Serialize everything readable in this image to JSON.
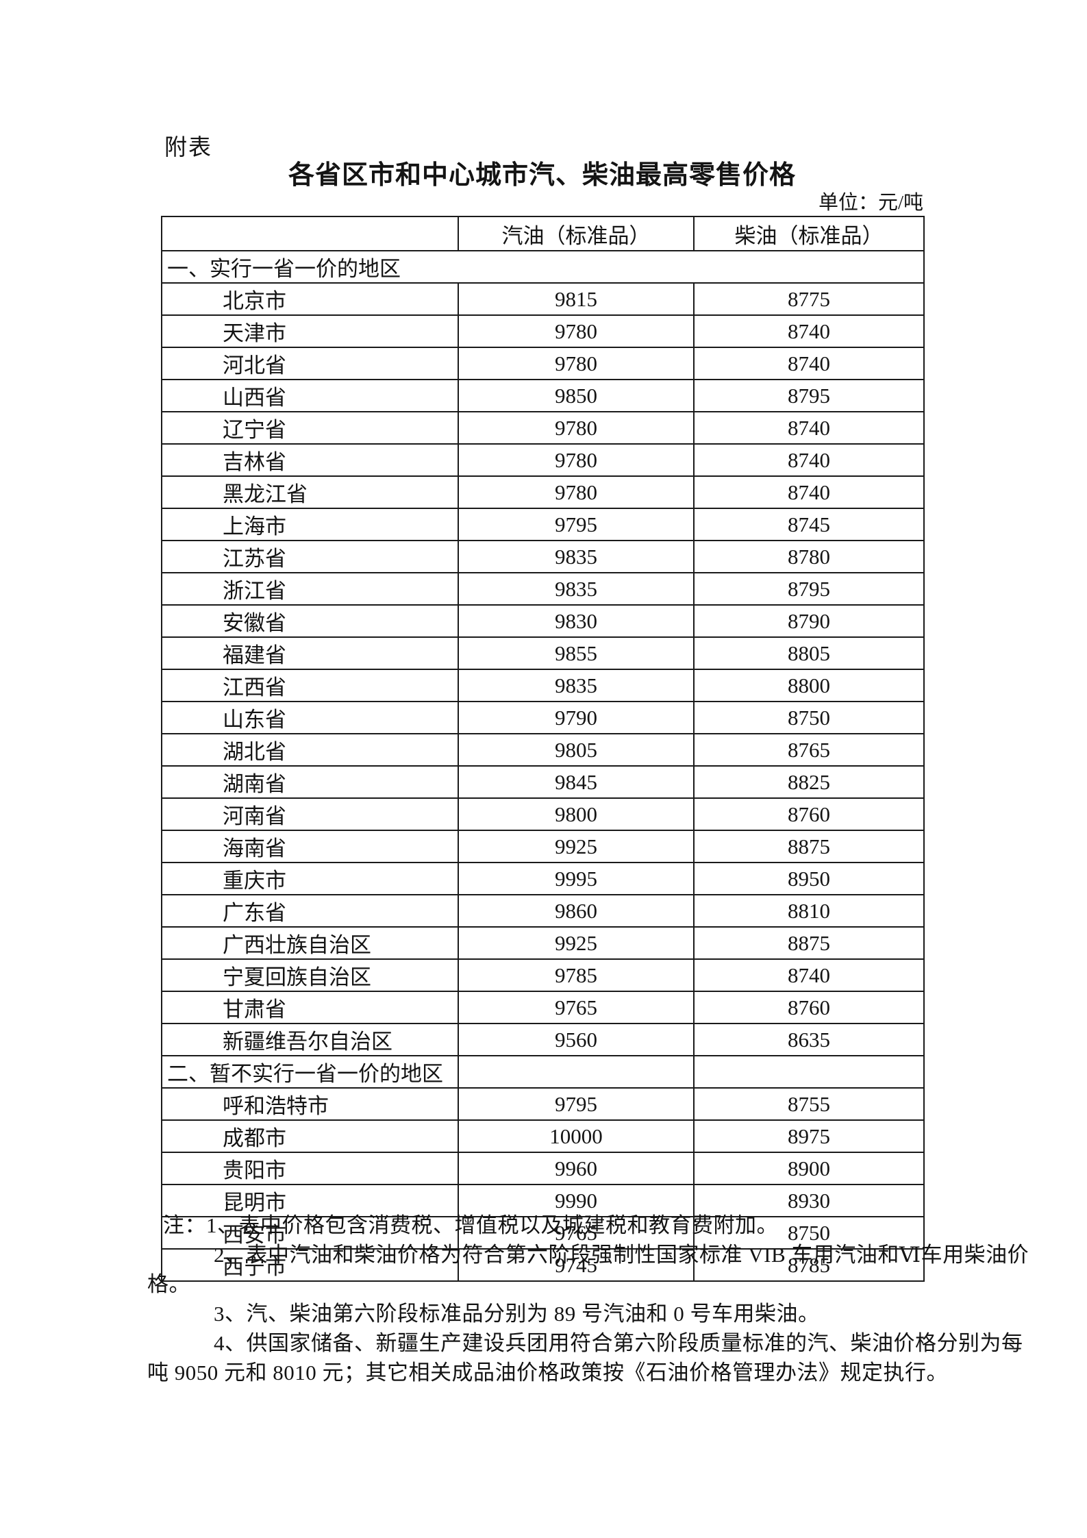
{
  "page": {
    "label": "附表",
    "title": "各省区市和中心城市汽、柴油最高零售价格",
    "unit": "单位：元/吨"
  },
  "table": {
    "columns": [
      "",
      "汽油（标准品）",
      "柴油（标准品）"
    ],
    "sections": [
      {
        "header": "一、实行一省一价的地区",
        "merged": true,
        "rows": [
          [
            "北京市",
            "9815",
            "8775"
          ],
          [
            "天津市",
            "9780",
            "8740"
          ],
          [
            "河北省",
            "9780",
            "8740"
          ],
          [
            "山西省",
            "9850",
            "8795"
          ],
          [
            "辽宁省",
            "9780",
            "8740"
          ],
          [
            "吉林省",
            "9780",
            "8740"
          ],
          [
            "黑龙江省",
            "9780",
            "8740"
          ],
          [
            "上海市",
            "9795",
            "8745"
          ],
          [
            "江苏省",
            "9835",
            "8780"
          ],
          [
            "浙江省",
            "9835",
            "8795"
          ],
          [
            "安徽省",
            "9830",
            "8790"
          ],
          [
            "福建省",
            "9855",
            "8805"
          ],
          [
            "江西省",
            "9835",
            "8800"
          ],
          [
            "山东省",
            "9790",
            "8750"
          ],
          [
            "湖北省",
            "9805",
            "8765"
          ],
          [
            "湖南省",
            "9845",
            "8825"
          ],
          [
            "河南省",
            "9800",
            "8760"
          ],
          [
            "海南省",
            "9925",
            "8875"
          ],
          [
            "重庆市",
            "9995",
            "8950"
          ],
          [
            "广东省",
            "9860",
            "8810"
          ],
          [
            "广西壮族自治区",
            "9925",
            "8875"
          ],
          [
            "宁夏回族自治区",
            "9785",
            "8740"
          ],
          [
            "甘肃省",
            "9765",
            "8760"
          ],
          [
            "新疆维吾尔自治区",
            "9560",
            "8635"
          ]
        ]
      },
      {
        "header": "二、暂不实行一省一价的地区",
        "merged": false,
        "rows": [
          [
            "呼和浩特市",
            "9795",
            "8755"
          ],
          [
            "成都市",
            "10000",
            "8975"
          ],
          [
            "贵阳市",
            "9960",
            "8900"
          ],
          [
            "昆明市",
            "9990",
            "8930"
          ],
          [
            "西安市",
            "9765",
            "8750"
          ],
          [
            "西宁市",
            "9745",
            "8785"
          ]
        ]
      }
    ]
  },
  "notes": {
    "lines": [
      {
        "text": "注：1、表中价格包含消费税、增值税以及城建税和教育费附加。",
        "style": "first"
      },
      {
        "text": "2、表中汽油和柴油价格为符合第六阶段强制性国家标准 VIB 车用汽油和Ⅵ车用柴油价",
        "style": "num"
      },
      {
        "text": "格。",
        "style": "cont"
      },
      {
        "text": "3、汽、柴油第六阶段标准品分别为 89 号汽油和 0 号车用柴油。",
        "style": "num"
      },
      {
        "text": "4、供国家储备、新疆生产建设兵团用符合第六阶段质量标准的汽、柴油价格分别为每",
        "style": "num"
      },
      {
        "text": "吨 9050 元和 8010 元；其它相关成品油价格政策按《石油价格管理办法》规定执行。",
        "style": "cont"
      }
    ]
  }
}
